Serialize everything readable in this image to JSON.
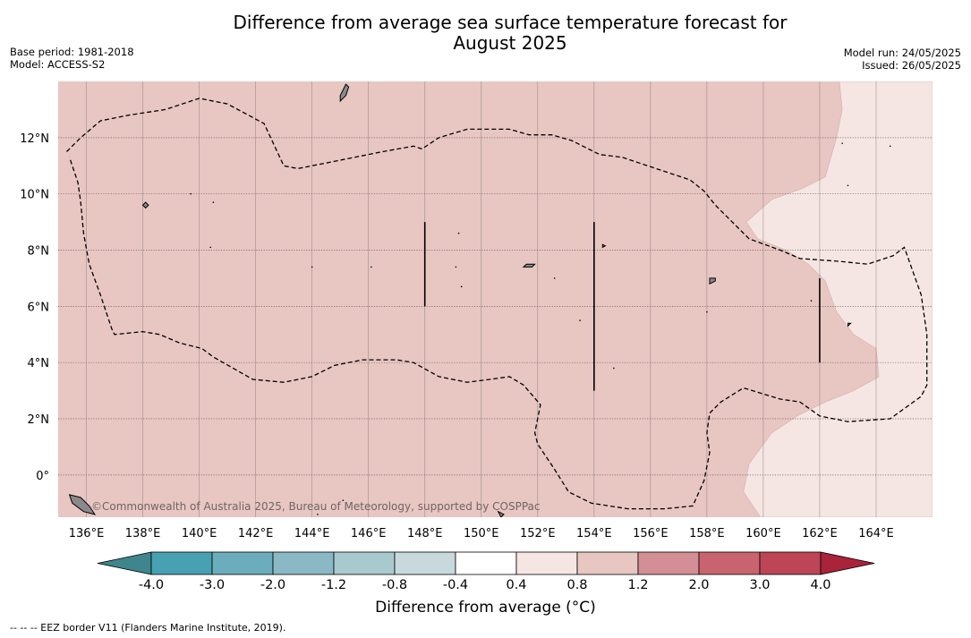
{
  "title": "Difference from average sea surface temperature forecast for August 2025",
  "title_line1": "Difference from average sea surface temperature forecast for",
  "title_line2": "August 2025",
  "meta_left": {
    "base_period": "Base period: 1981-2018",
    "model": "Model: ACCESS-S2"
  },
  "meta_right": {
    "model_run": "Model run: 24/05/2025",
    "issued": "Issued: 26/05/2025"
  },
  "map": {
    "lon_range": [
      135,
      166
    ],
    "lat_range": [
      -1.5,
      14
    ],
    "lon_ticks": [
      "136°E",
      "138°E",
      "140°E",
      "142°E",
      "144°E",
      "146°E",
      "148°E",
      "150°E",
      "152°E",
      "154°E",
      "156°E",
      "158°E",
      "160°E",
      "162°E",
      "164°E"
    ],
    "lat_ticks": [
      "12°N",
      "10°N",
      "8°N",
      "6°N",
      "4°N",
      "2°N",
      "0°"
    ],
    "grid": true,
    "fill_colors": {
      "main": "#e8c6c2",
      "east": "#f5e6e4"
    },
    "land_color": "#8a8a8a",
    "attribution": "©Commonwealth of Australia 2025, Bureau of Meteorology, supported by COSPPac"
  },
  "colorbar": {
    "boundaries": [
      "-4.0",
      "-3.0",
      "-2.0",
      "-1.2",
      "-0.8",
      "-0.4",
      "0.4",
      "0.8",
      "1.2",
      "2.0",
      "3.0",
      "4.0"
    ],
    "colors": [
      "#47a1b2",
      "#6badbc",
      "#8ab8c4",
      "#a8cacf",
      "#c8d9dd",
      "#ffffff",
      "#f5e6e4",
      "#e8c6c2",
      "#d48f96",
      "#c8646f",
      "#bd4556"
    ],
    "under_color": "#3f858e",
    "over_color": "#a9233b",
    "label": "Difference from average (°C)"
  },
  "footnote": "--  --  -- EEZ border V11 (Flanders Marine Institute, 2019)."
}
